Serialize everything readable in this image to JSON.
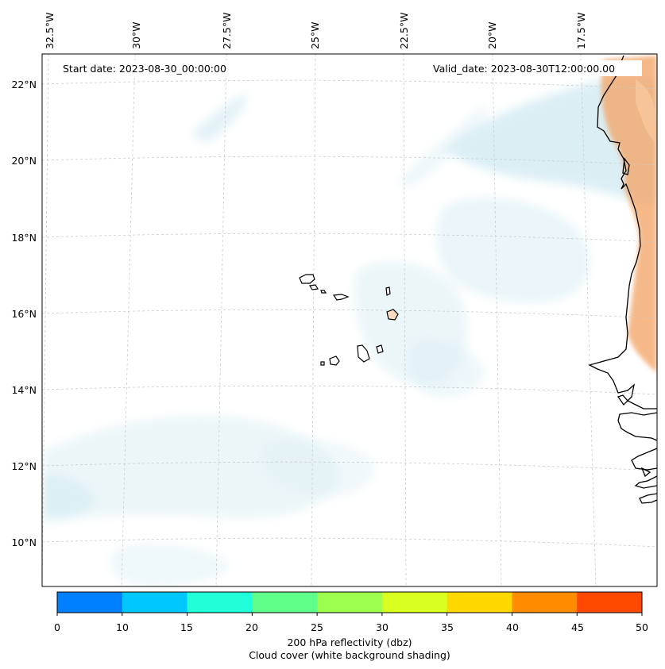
{
  "map": {
    "start_date": "Start date: 2023-08-30_00:00:00",
    "valid_date": "Valid_date: 2023-08-30T12:00:00.00",
    "lon_labels": [
      "32.5°W",
      "30°W",
      "27.5°W",
      "25°W",
      "22.5°W",
      "20°W",
      "17.5°W"
    ],
    "lat_labels": [
      "22°N",
      "20°N",
      "18°N",
      "16°N",
      "14°N",
      "12°N",
      "10°N"
    ],
    "colors": {
      "cloud_shading": "#cfe9f1",
      "warm_shading": "#f3a76c",
      "land_outline": "#000000",
      "island_fill": "#fbdcc2"
    }
  },
  "colorbar": {
    "ticks": [
      "0",
      "10",
      "15",
      "20",
      "25",
      "30",
      "35",
      "40",
      "45",
      "50"
    ],
    "colors": [
      "#0080ff",
      "#00c8ff",
      "#20ffd8",
      "#60ff8c",
      "#9cff50",
      "#d8ff20",
      "#ffd800",
      "#ff8c00",
      "#ff4800"
    ],
    "label_line1": "200 hPa reflectivity (dbz)",
    "label_line2": "Cloud cover (white background shading)"
  }
}
